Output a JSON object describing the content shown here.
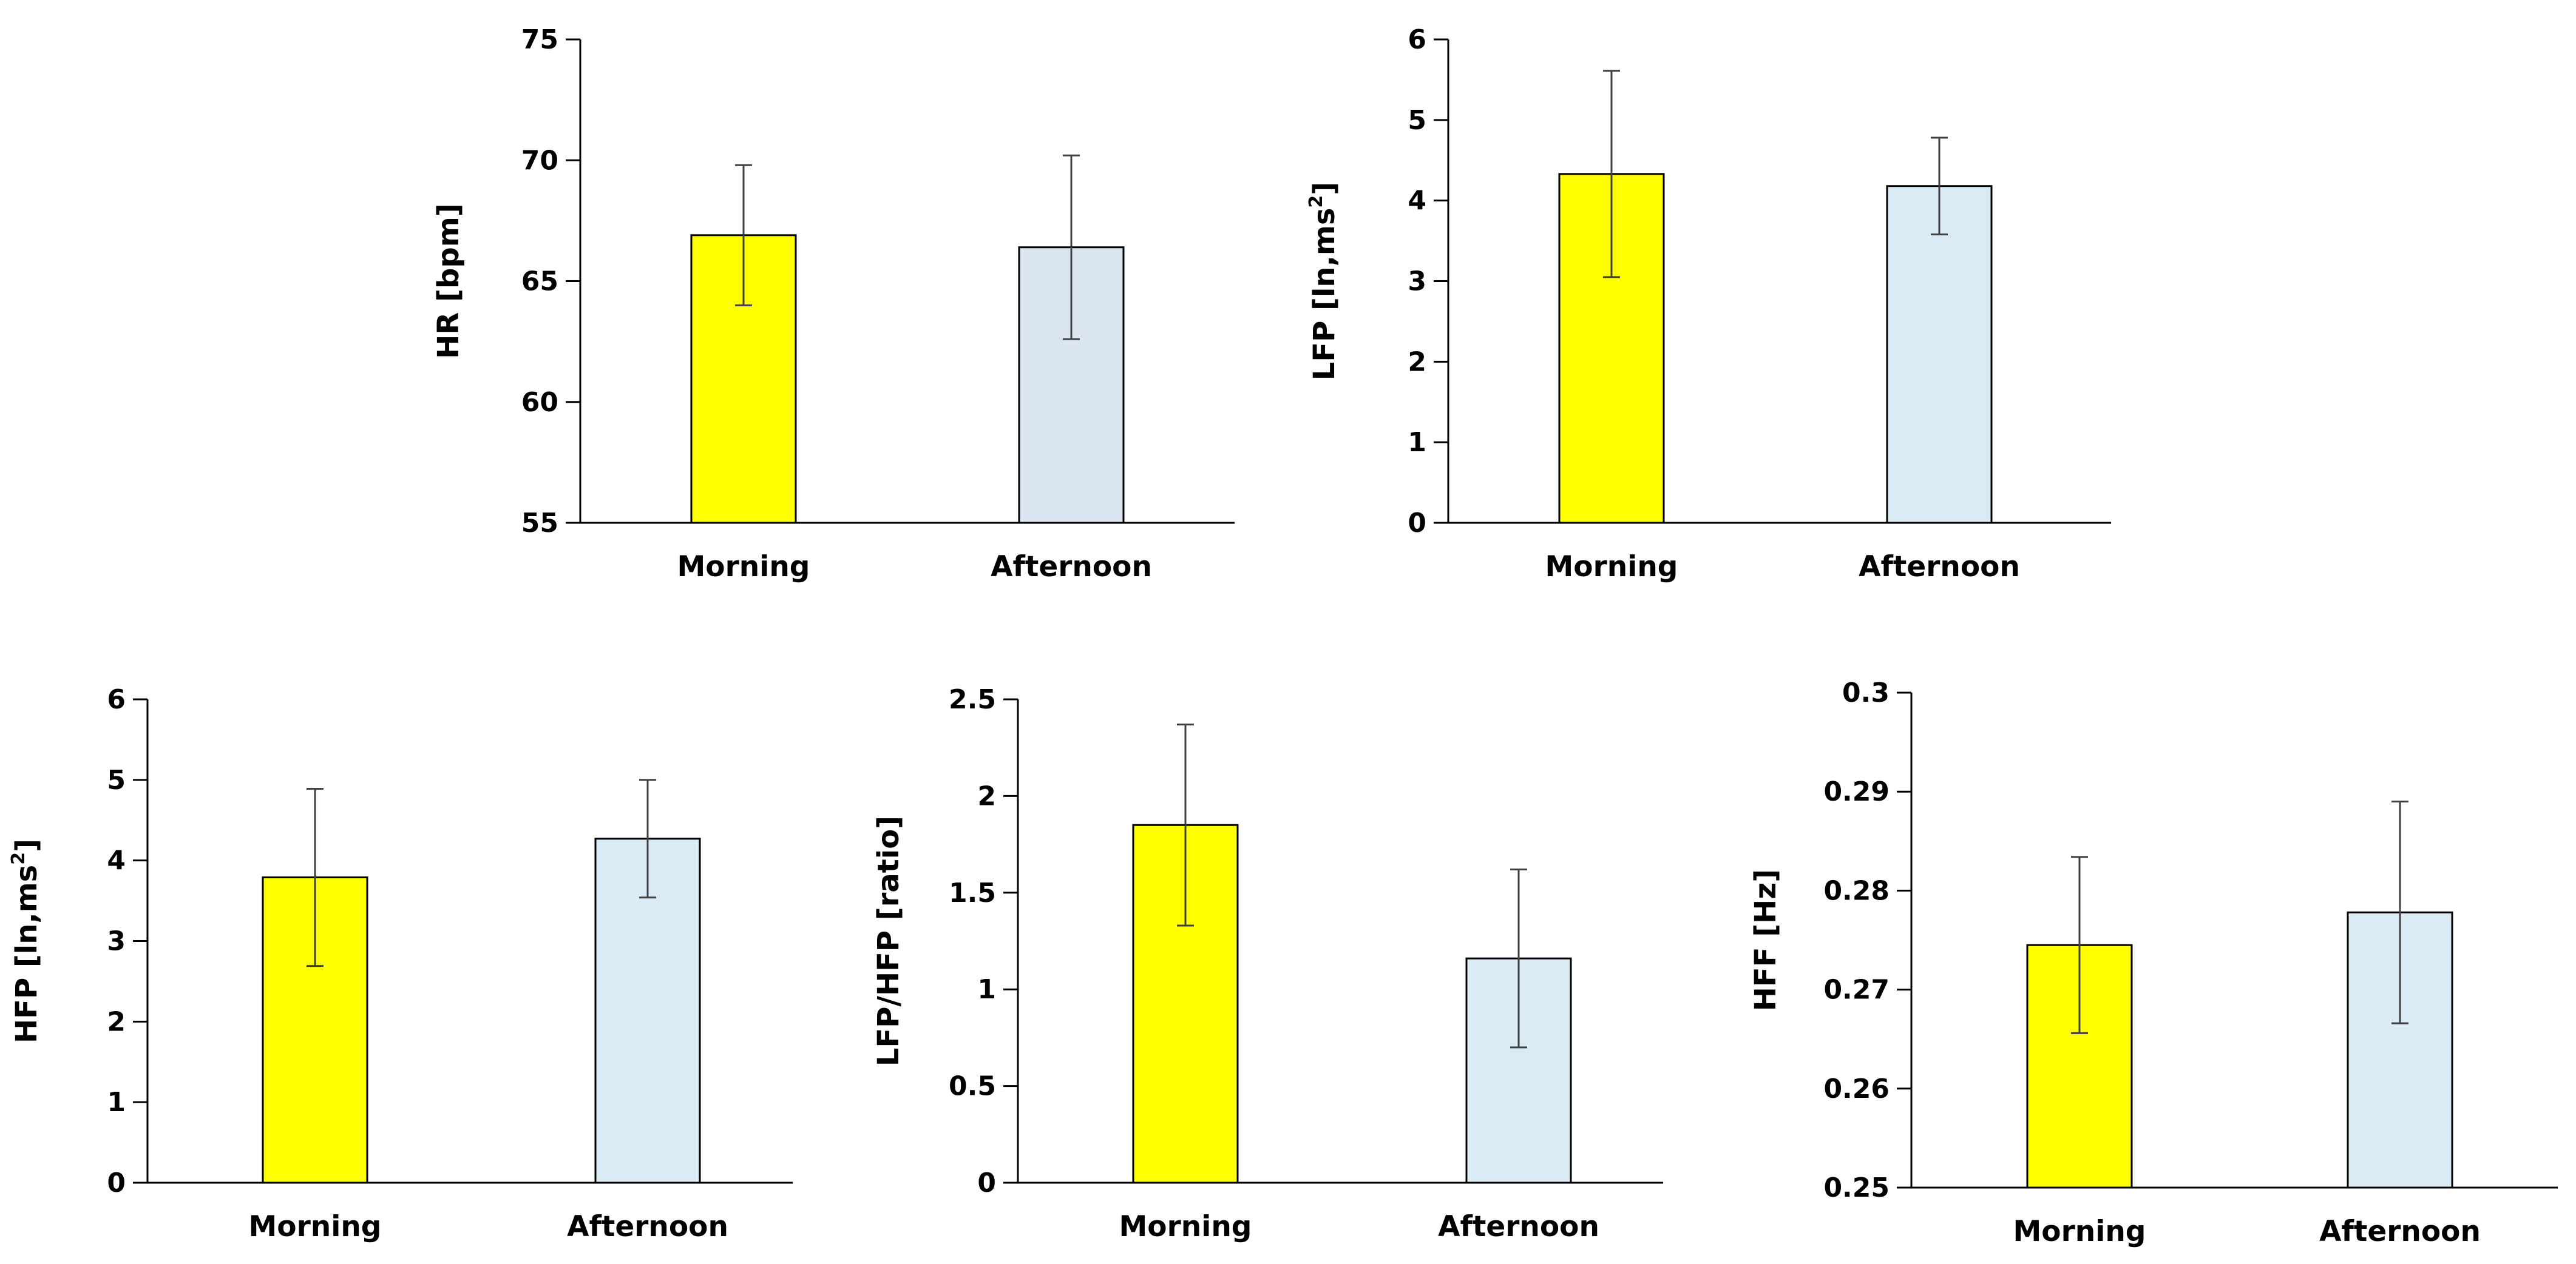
{
  "chart_data": [
    {
      "id": "hr",
      "type": "bar",
      "categories": [
        "Morning",
        "Afternoon"
      ],
      "values": [
        66.9,
        66.4
      ],
      "error": [
        2.9,
        3.8
      ],
      "ylabel": "HR [bpm]",
      "ylim": [
        55,
        75
      ],
      "yticks": [
        "55",
        "60",
        "65",
        "70",
        "75"
      ],
      "bar_colors": [
        "#ffff00",
        "#dae5f1"
      ]
    },
    {
      "id": "lfp",
      "type": "bar",
      "categories": [
        "Morning",
        "Afternoon"
      ],
      "values": [
        4.33,
        4.18
      ],
      "error": [
        1.28,
        0.6
      ],
      "ylabel": "LFP [ln,ms2]",
      "ylim": [
        0,
        6
      ],
      "yticks": [
        "0",
        "1",
        "2",
        "3",
        "4",
        "5",
        "6"
      ],
      "bar_colors": [
        "#ffff00",
        "#dbebf6"
      ]
    },
    {
      "id": "hfp",
      "type": "bar",
      "categories": [
        "Morning",
        "Afternoon"
      ],
      "values": [
        3.79,
        4.27
      ],
      "error": [
        1.1,
        0.73
      ],
      "ylabel": "HFP [ln,ms2]",
      "ylim": [
        0,
        6
      ],
      "yticks": [
        "0",
        "1",
        "2",
        "3",
        "4",
        "5",
        "6"
      ],
      "bar_colors": [
        "#ffff00",
        "#dbebf6"
      ]
    },
    {
      "id": "lfhf",
      "type": "bar",
      "categories": [
        "Morning",
        "Afternoon"
      ],
      "values": [
        1.85,
        1.16
      ],
      "error": [
        0.52,
        0.46
      ],
      "ylabel": "LFP/HFP [ratio]",
      "ylim": [
        0,
        2.5
      ],
      "yticks": [
        "0",
        "0.5",
        "1",
        "1.5",
        "2",
        "2.5"
      ],
      "bar_colors": [
        "#ffff00",
        "#dbebf6"
      ]
    },
    {
      "id": "hff",
      "type": "bar",
      "categories": [
        "Morning",
        "Afternoon"
      ],
      "values": [
        0.2745,
        0.2778
      ],
      "error": [
        0.0089,
        0.0112
      ],
      "ylabel": "HFF [Hz]",
      "ylim": [
        0.25,
        0.3
      ],
      "yticks": [
        "0.25",
        "0.26",
        "0.27",
        "0.28",
        "0.29",
        "0.3"
      ],
      "bar_colors": [
        "#ffff00",
        "#dbebf6"
      ]
    }
  ]
}
